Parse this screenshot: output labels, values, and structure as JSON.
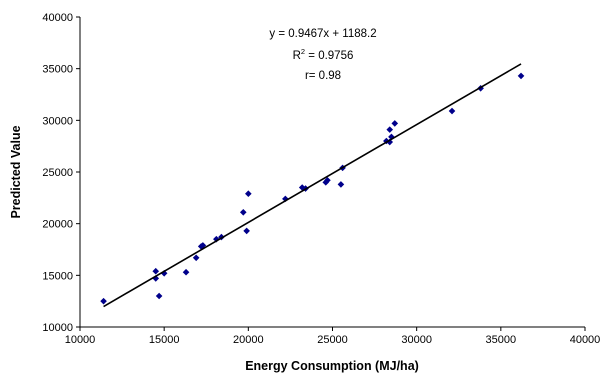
{
  "chart_data": {
    "type": "scatter",
    "xlabel": "Energy Consumption (MJ/ha)",
    "ylabel": "Predicted Value",
    "xlim": [
      10000,
      40000
    ],
    "ylim": [
      10000,
      40000
    ],
    "x_ticks": [
      "10000",
      "15000",
      "20000",
      "25000",
      "30000",
      "35000",
      "40000"
    ],
    "y_ticks": [
      "10000",
      "15000",
      "20000",
      "25000",
      "30000",
      "35000",
      "40000"
    ],
    "grid": false,
    "marker_color": "#00008B",
    "line_color": "#000000",
    "points": [
      {
        "x": 11400,
        "y": 12500
      },
      {
        "x": 14500,
        "y": 15400
      },
      {
        "x": 14500,
        "y": 14700
      },
      {
        "x": 14700,
        "y": 13000
      },
      {
        "x": 15000,
        "y": 15200
      },
      {
        "x": 16300,
        "y": 15300
      },
      {
        "x": 16900,
        "y": 16700
      },
      {
        "x": 17200,
        "y": 17800
      },
      {
        "x": 17300,
        "y": 17900
      },
      {
        "x": 18100,
        "y": 18500
      },
      {
        "x": 18400,
        "y": 18700
      },
      {
        "x": 19700,
        "y": 21100
      },
      {
        "x": 19900,
        "y": 19300
      },
      {
        "x": 20000,
        "y": 22900
      },
      {
        "x": 22200,
        "y": 22400
      },
      {
        "x": 23200,
        "y": 23500
      },
      {
        "x": 23400,
        "y": 23400
      },
      {
        "x": 24600,
        "y": 24000
      },
      {
        "x": 24700,
        "y": 24200
      },
      {
        "x": 25500,
        "y": 23800
      },
      {
        "x": 25600,
        "y": 25400
      },
      {
        "x": 28200,
        "y": 28000
      },
      {
        "x": 28400,
        "y": 29100
      },
      {
        "x": 28400,
        "y": 27900
      },
      {
        "x": 28500,
        "y": 28400
      },
      {
        "x": 28700,
        "y": 29700
      },
      {
        "x": 32100,
        "y": 30900
      },
      {
        "x": 33800,
        "y": 33100
      },
      {
        "x": 36200,
        "y": 34300
      }
    ],
    "trendline": {
      "slope": 0.9467,
      "intercept": 1188.2,
      "x_range": [
        11400,
        36200
      ],
      "equation": "y = 0.9467x + 1188.2",
      "r2_prefix": "R",
      "r2_sup": "2",
      "r2_value": " = 0.9756",
      "r_text": "r= 0.98"
    }
  }
}
